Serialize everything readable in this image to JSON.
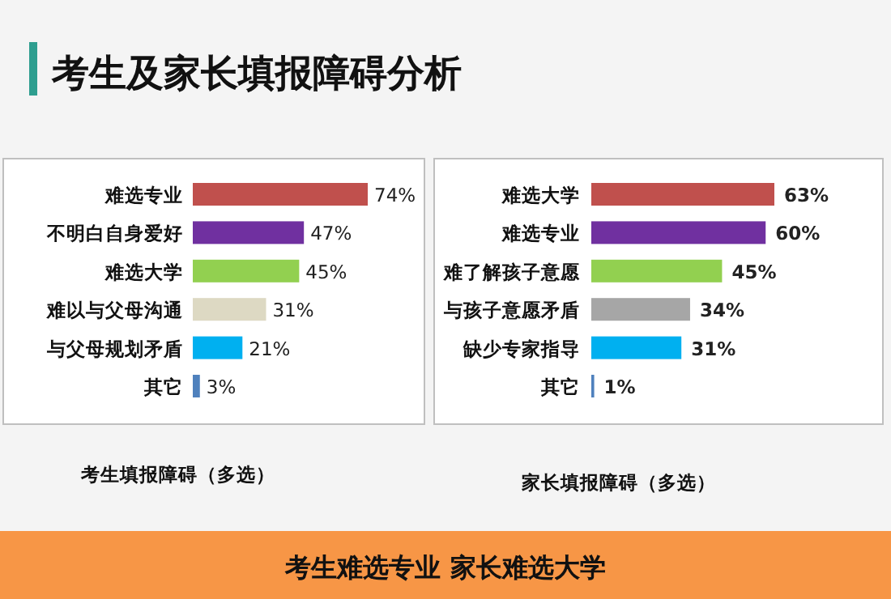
{
  "chart_data": [
    {
      "type": "other",
      "title": "考生及家长填报障碍分析",
      "annotations": [
        "考生难选专业   家长难选大学"
      ]
    },
    {
      "type": "bar",
      "orientation": "horizontal",
      "xlabel": "考生填报障碍（多选）",
      "categories": [
        "难选专业",
        "不明白自身爱好",
        "难选大学",
        "难以与父母沟通",
        "与父母规划矛盾",
        "其它"
      ],
      "values": [
        74,
        47,
        45,
        31,
        21,
        3
      ],
      "colors": [
        "#c0504d",
        "#7030a0",
        "#92d050",
        "#ddd9c3",
        "#00b0f0",
        "#4f81bd"
      ],
      "value_labels": [
        "74%",
        "47%",
        "45%",
        "31%",
        "21%",
        "3%"
      ]
    },
    {
      "type": "bar",
      "orientation": "horizontal",
      "xlabel": "家长填报障碍（多选）",
      "categories": [
        "难选大学",
        "难选专业",
        "难了解孩子意愿",
        "与孩子意愿矛盾",
        "缺少专家指导",
        "其它"
      ],
      "values": [
        63,
        60,
        45,
        34,
        31,
        1
      ],
      "colors": [
        "#c0504d",
        "#7030a0",
        "#92d050",
        "#a6a6a6",
        "#00b0f0",
        "#4f81bd"
      ],
      "value_labels": [
        "63%",
        "60%",
        "45%",
        "34%",
        "31%",
        "1%"
      ]
    }
  ]
}
